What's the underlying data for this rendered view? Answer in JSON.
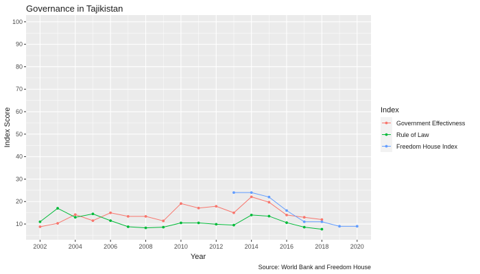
{
  "chart_data": {
    "type": "line",
    "title": "Governance in Tajikistan",
    "xlabel": "Year",
    "ylabel": "Index Score",
    "caption": "Source: World Bank and Freedom House",
    "xlim": [
      2002,
      2020
    ],
    "ylim": [
      3,
      103
    ],
    "x_ticks": [
      2002,
      2004,
      2006,
      2008,
      2010,
      2012,
      2014,
      2016,
      2018,
      2020
    ],
    "y_ticks": [
      10,
      20,
      30,
      40,
      50,
      60,
      70,
      80,
      90,
      100
    ],
    "grid": true,
    "legend": {
      "title": "Index",
      "position": "right"
    },
    "series": [
      {
        "name": "Government Effectivness",
        "color": "#F8766D",
        "x": [
          2002,
          2003,
          2004,
          2005,
          2006,
          2007,
          2008,
          2009,
          2010,
          2011,
          2012,
          2013,
          2014,
          2015,
          2016,
          2017,
          2018
        ],
        "values": [
          8.8,
          10.3,
          14.2,
          11.5,
          15.0,
          13.4,
          13.4,
          11.4,
          19.1,
          17.1,
          17.9,
          15.0,
          22.1,
          19.7,
          14.0,
          13.0,
          12.0
        ]
      },
      {
        "name": "Rule of Law",
        "color": "#00BA38",
        "x": [
          2002,
          2003,
          2004,
          2005,
          2006,
          2007,
          2008,
          2009,
          2010,
          2011,
          2012,
          2013,
          2014,
          2015,
          2016,
          2017,
          2018
        ],
        "values": [
          11.0,
          17.0,
          13.0,
          14.5,
          11.5,
          8.8,
          8.3,
          8.6,
          10.5,
          10.5,
          9.9,
          9.5,
          14.0,
          13.5,
          10.6,
          8.6,
          7.7
        ]
      },
      {
        "name": "Freedom House Index",
        "color": "#619CFF",
        "x": [
          2013,
          2014,
          2015,
          2016,
          2017,
          2018,
          2019,
          2020
        ],
        "values": [
          24,
          24,
          22,
          16,
          11,
          11,
          9,
          9
        ]
      }
    ]
  }
}
